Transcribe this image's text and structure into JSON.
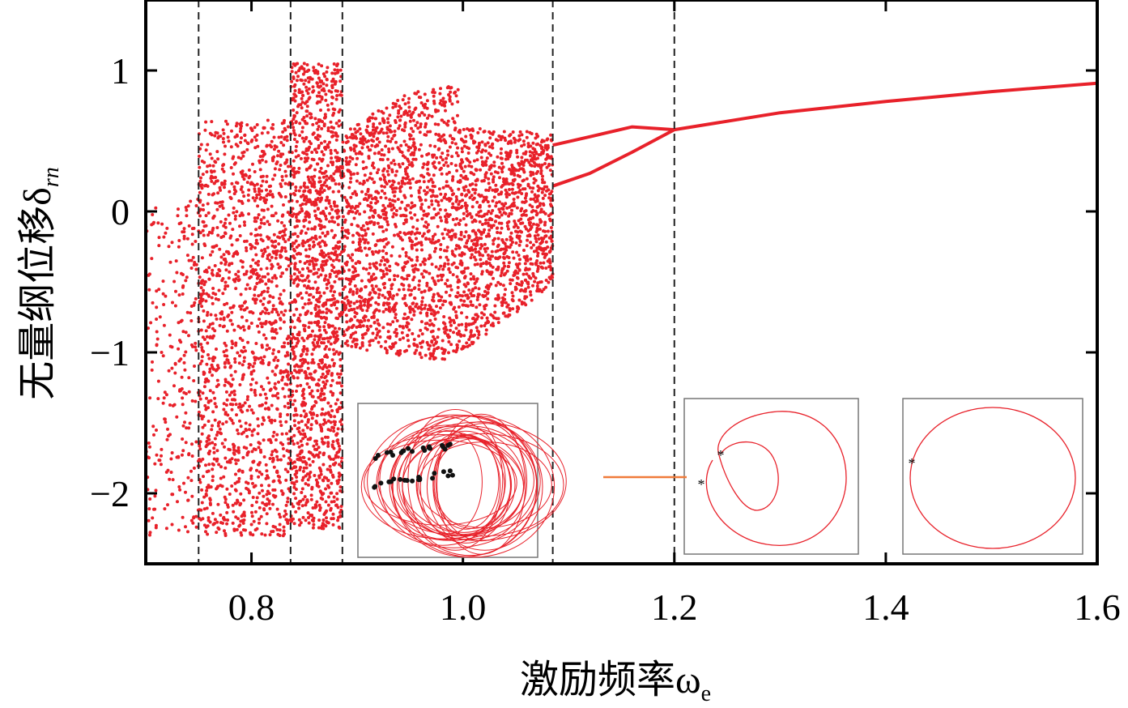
{
  "chart_data": {
    "type": "scatter",
    "title": "",
    "xlabel": "激励频率ω",
    "xlabel_subscript": "e",
    "ylabel": "无量纲位移δ",
    "ylabel_subscript": "rn",
    "xlim": [
      0.7,
      1.6
    ],
    "ylim": [
      -2.5,
      1.5
    ],
    "x_ticks": [
      0.8,
      1.0,
      1.2,
      1.4,
      1.6
    ],
    "x_tick_labels": [
      "0.8",
      "1.0",
      "1.2",
      "1.4",
      "1.6"
    ],
    "y_ticks": [
      -2,
      -1,
      0,
      1
    ],
    "y_tick_labels": [
      "−2",
      "−1",
      "0",
      "1"
    ],
    "grid": false,
    "point_color": "#e8212a",
    "divider_color": "#222222",
    "dividers_x": [
      0.75,
      0.837,
      0.886,
      1.085,
      1.2
    ],
    "regions": [
      {
        "x_range": [
          0.7,
          0.75
        ],
        "y_range": [
          -2.3,
          0.1
        ]
      },
      {
        "x_range": [
          0.75,
          0.837
        ],
        "y_range": [
          -2.3,
          0.65
        ]
      },
      {
        "x_range": [
          0.837,
          0.886
        ],
        "y_range": [
          -2.25,
          1.05
        ]
      },
      {
        "x_range": [
          0.886,
          1.085
        ],
        "y_range": [
          -1.1,
          0.9
        ]
      },
      {
        "x_range": [
          1.085,
          1.2
        ],
        "y_range": [
          0.05,
          0.65
        ]
      },
      {
        "x_range": [
          1.2,
          1.6
        ],
        "y_range": [
          0.55,
          0.92
        ]
      }
    ],
    "periodic_branches": [
      {
        "x": [
          1.085,
          1.12,
          1.16,
          1.2
        ],
        "y": [
          0.47,
          0.53,
          0.6,
          0.58
        ]
      },
      {
        "x": [
          1.085,
          1.12,
          1.16,
          1.2
        ],
        "y": [
          0.18,
          0.27,
          0.42,
          0.58
        ]
      },
      {
        "x": [
          1.2,
          1.3,
          1.4,
          1.5,
          1.6
        ],
        "y": [
          0.58,
          0.7,
          0.78,
          0.85,
          0.91
        ]
      }
    ],
    "insets": [
      {
        "name": "chaotic-phase-portrait",
        "type": "phase-portrait",
        "poincare_points": "many"
      },
      {
        "name": "period-2-phase-portrait",
        "type": "phase-portrait",
        "poincare_points": 2
      },
      {
        "name": "period-1-phase-portrait",
        "type": "phase-portrait",
        "poincare_points": 1
      }
    ],
    "inset_pointer_color": "#f07b3a"
  }
}
